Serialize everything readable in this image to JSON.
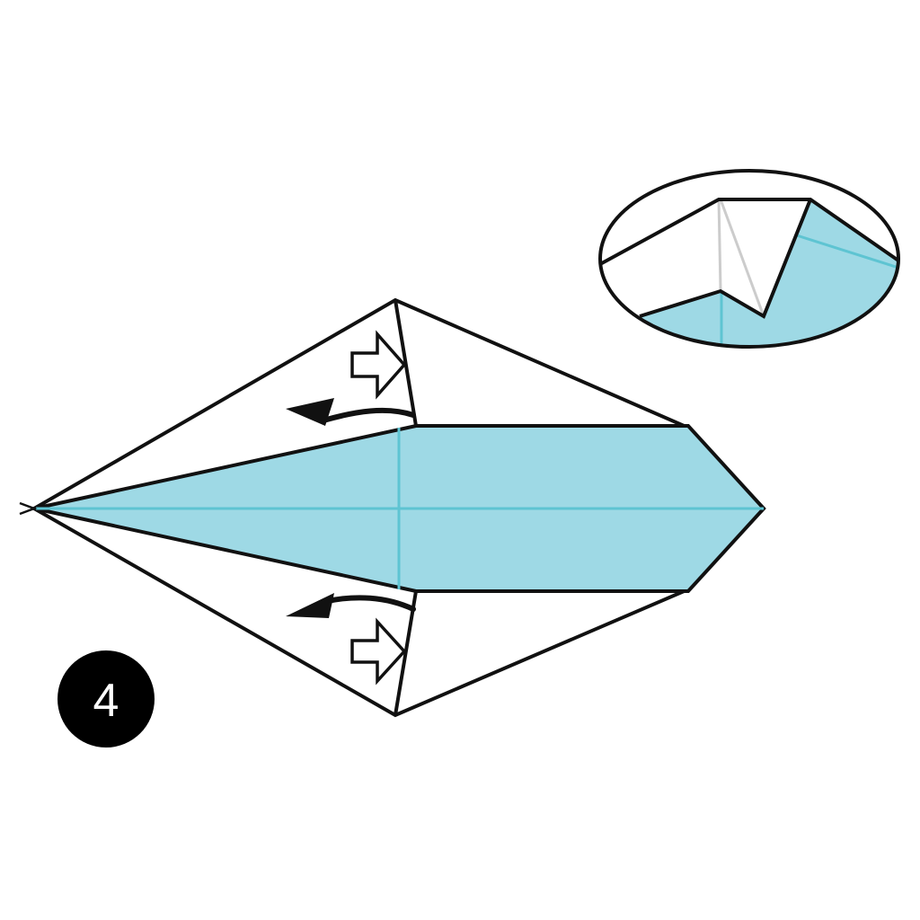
{
  "diagram": {
    "step_number": "4",
    "colors": {
      "paper_color": "#9ed9e5",
      "paper_back": "#ffffff",
      "outline": "#111111",
      "crease": "#5ec4d2",
      "hidden_crease": "#cccccc",
      "step_badge": "#000000",
      "step_text": "#ffffff"
    },
    "icons": [
      "push-arrow-icon",
      "fold-arrow-icon",
      "detail-zoom-view"
    ]
  }
}
